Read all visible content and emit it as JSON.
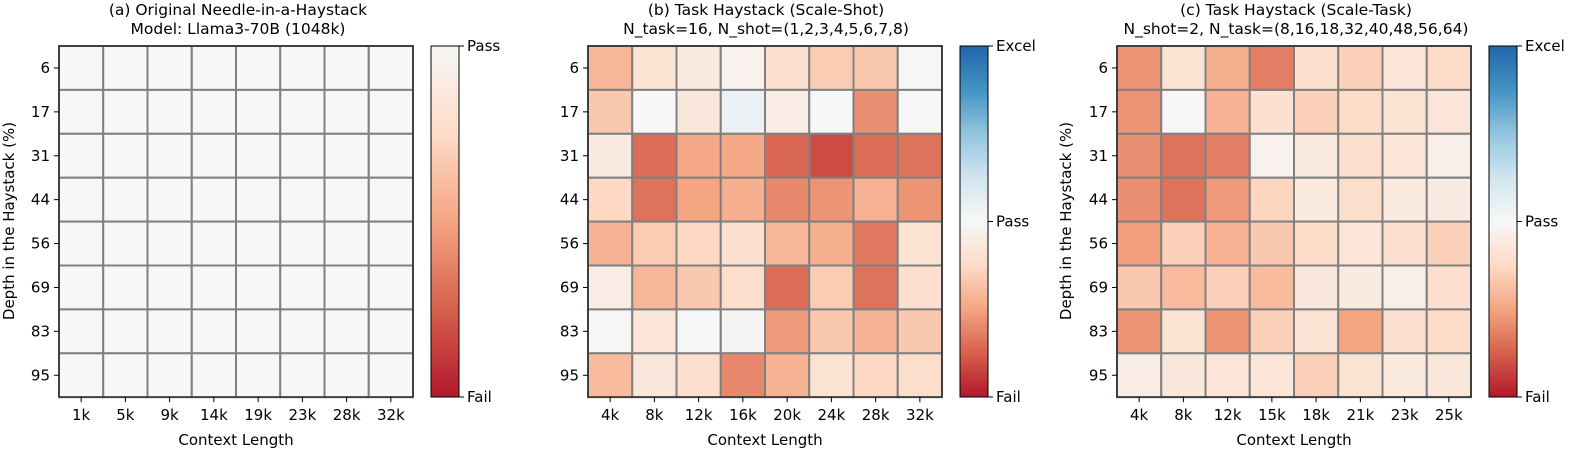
{
  "colors": {
    "fail": "#b2182b",
    "pass": "#f7f7f7",
    "excel": "#2166ac",
    "grid": "#808080"
  },
  "chart_data": [
    {
      "type": "heatmap",
      "title_lines": [
        "(a) Original Needle-in-a-Haystack",
        "Model: Llama3-70B (1048k)"
      ],
      "xlabel": "Context Length",
      "ylabel": "Depth in the Haystack (%)",
      "x_ticks": [
        "1k",
        "5k",
        "9k",
        "14k",
        "19k",
        "23k",
        "28k",
        "32k"
      ],
      "y_ticks": [
        "6",
        "17",
        "31",
        "44",
        "56",
        "69",
        "83",
        "95"
      ],
      "value_range": [
        0,
        1
      ],
      "colorbar": {
        "ticks": [
          {
            "value": 1,
            "label": "Pass"
          },
          {
            "value": 0,
            "label": "Fail"
          }
        ]
      },
      "values": [
        [
          1,
          1,
          1,
          1,
          1,
          1,
          1,
          1
        ],
        [
          1,
          1,
          1,
          1,
          1,
          1,
          1,
          1
        ],
        [
          1,
          1,
          1,
          1,
          1,
          1,
          1,
          1
        ],
        [
          1,
          1,
          1,
          1,
          1,
          1,
          1,
          1
        ],
        [
          1,
          1,
          1,
          1,
          1,
          1,
          1,
          1
        ],
        [
          1,
          1,
          1,
          1,
          1,
          1,
          1,
          1
        ],
        [
          1,
          1,
          1,
          1,
          1,
          1,
          1,
          1
        ],
        [
          1,
          1,
          1,
          1,
          1,
          1,
          1,
          1
        ]
      ]
    },
    {
      "type": "heatmap",
      "title_lines": [
        "(b) Task Haystack (Scale-Shot)",
        "N_task=16, N_shot=(1,2,3,4,5,6,7,8)"
      ],
      "xlabel": "Context Length",
      "ylabel": "",
      "x_ticks": [
        "4k",
        "8k",
        "12k",
        "16k",
        "20k",
        "24k",
        "28k",
        "32k"
      ],
      "y_ticks": [
        "6",
        "17",
        "31",
        "44",
        "56",
        "69",
        "83",
        "95"
      ],
      "value_range": [
        0,
        2
      ],
      "colorbar": {
        "ticks": [
          {
            "value": 2,
            "label": "Excel"
          },
          {
            "value": 1,
            "label": "Pass"
          },
          {
            "value": 0,
            "label": "Fail"
          }
        ]
      },
      "values": [
        [
          0.58,
          0.82,
          0.88,
          0.95,
          0.78,
          0.68,
          0.66,
          0.99
        ],
        [
          0.66,
          1.0,
          0.86,
          1.08,
          0.9,
          1.0,
          0.42,
          1.0
        ],
        [
          0.88,
          0.3,
          0.52,
          0.52,
          0.28,
          0.18,
          0.3,
          0.32
        ],
        [
          0.74,
          0.32,
          0.5,
          0.55,
          0.4,
          0.44,
          0.56,
          0.44
        ],
        [
          0.56,
          0.68,
          0.74,
          0.79,
          0.58,
          0.54,
          0.34,
          0.82
        ],
        [
          0.9,
          0.58,
          0.66,
          0.78,
          0.3,
          0.68,
          0.32,
          0.79
        ],
        [
          0.99,
          0.84,
          1.0,
          0.98,
          0.46,
          0.66,
          0.56,
          0.66
        ],
        [
          0.6,
          0.86,
          0.79,
          0.4,
          0.56,
          0.82,
          0.74,
          0.78
        ]
      ]
    },
    {
      "type": "heatmap",
      "title_lines": [
        "(c) Task Haystack (Scale-Task)",
        "N_shot=2, N_task=(8,16,18,32,40,48,56,64)"
      ],
      "xlabel": "Context Length",
      "ylabel": "Depth in the Haystack (%)",
      "x_ticks": [
        "4k",
        "8k",
        "12k",
        "15k",
        "18k",
        "21k",
        "23k",
        "25k"
      ],
      "y_ticks": [
        "6",
        "17",
        "31",
        "44",
        "56",
        "69",
        "83",
        "95"
      ],
      "value_range": [
        0,
        2
      ],
      "colorbar": {
        "ticks": [
          {
            "value": 2,
            "label": "Excel"
          },
          {
            "value": 1,
            "label": "Pass"
          },
          {
            "value": 0,
            "label": "Fail"
          }
        ]
      },
      "values": [
        [
          0.44,
          0.82,
          0.54,
          0.36,
          0.8,
          0.7,
          0.84,
          0.76
        ],
        [
          0.44,
          1.0,
          0.56,
          0.8,
          0.7,
          0.76,
          0.82,
          0.84
        ],
        [
          0.42,
          0.32,
          0.36,
          0.95,
          0.88,
          0.79,
          0.84,
          0.92
        ],
        [
          0.42,
          0.32,
          0.46,
          0.72,
          0.88,
          0.78,
          0.88,
          0.89
        ],
        [
          0.48,
          0.7,
          0.56,
          0.66,
          0.76,
          0.84,
          0.8,
          0.7
        ],
        [
          0.66,
          0.6,
          0.7,
          0.6,
          0.86,
          0.88,
          0.92,
          0.79
        ],
        [
          0.44,
          0.82,
          0.44,
          0.7,
          0.82,
          0.5,
          0.8,
          0.76
        ],
        [
          0.9,
          0.86,
          0.84,
          0.84,
          0.7,
          0.82,
          0.88,
          0.86
        ]
      ]
    }
  ]
}
